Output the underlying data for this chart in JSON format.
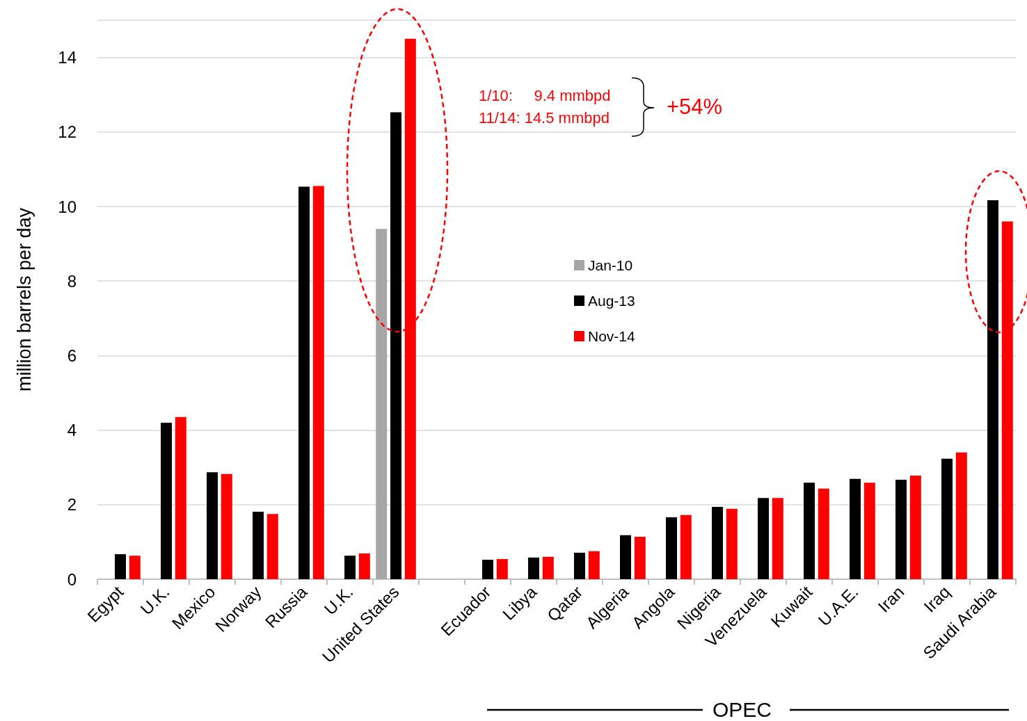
{
  "chart_data": {
    "type": "bar",
    "ylabel": "million barrels per day",
    "categories": [
      "Egypt",
      "U.K.",
      "Mexico",
      "Norway",
      "Russia",
      "U.K.",
      "United States",
      null,
      "Ecuador",
      "Libya",
      "Qatar",
      "Algeria",
      "Angola",
      "Nigeria",
      "Venezuela",
      "Kuwait",
      "U.A.E.",
      "Iran",
      "Iraq",
      "Saudi Arabia"
    ],
    "series": [
      {
        "name": "Jan-10",
        "color": "#a6a6a6",
        "values": [
          null,
          null,
          null,
          null,
          null,
          null,
          9.4,
          null,
          null,
          null,
          null,
          null,
          null,
          null,
          null,
          null,
          null,
          null,
          null,
          null
        ]
      },
      {
        "name": "Aug-13",
        "color": "#000000",
        "values": [
          0.67,
          4.2,
          2.87,
          1.81,
          10.53,
          0.63,
          12.53,
          null,
          0.52,
          0.58,
          0.71,
          1.18,
          1.66,
          1.94,
          2.18,
          2.59,
          2.69,
          2.67,
          3.23,
          10.17
        ]
      },
      {
        "name": "Nov-14",
        "color": "#ff0000",
        "values": [
          0.63,
          4.35,
          2.82,
          1.75,
          10.55,
          0.69,
          14.5,
          null,
          0.54,
          0.6,
          0.75,
          1.14,
          1.72,
          1.89,
          2.18,
          2.43,
          2.59,
          2.78,
          3.4,
          9.6
        ]
      }
    ],
    "ylim": [
      0,
      15
    ],
    "yticks": [
      0,
      2,
      4,
      6,
      8,
      10,
      12,
      14,
      {
        "value": 15,
        "label": null
      }
    ],
    "grid": "y",
    "legend": "center",
    "annotations": [
      "1/10:     9.4 mmbpd",
      "11/14: 14.5 mmbpd",
      "+54%",
      "OPEC"
    ]
  }
}
